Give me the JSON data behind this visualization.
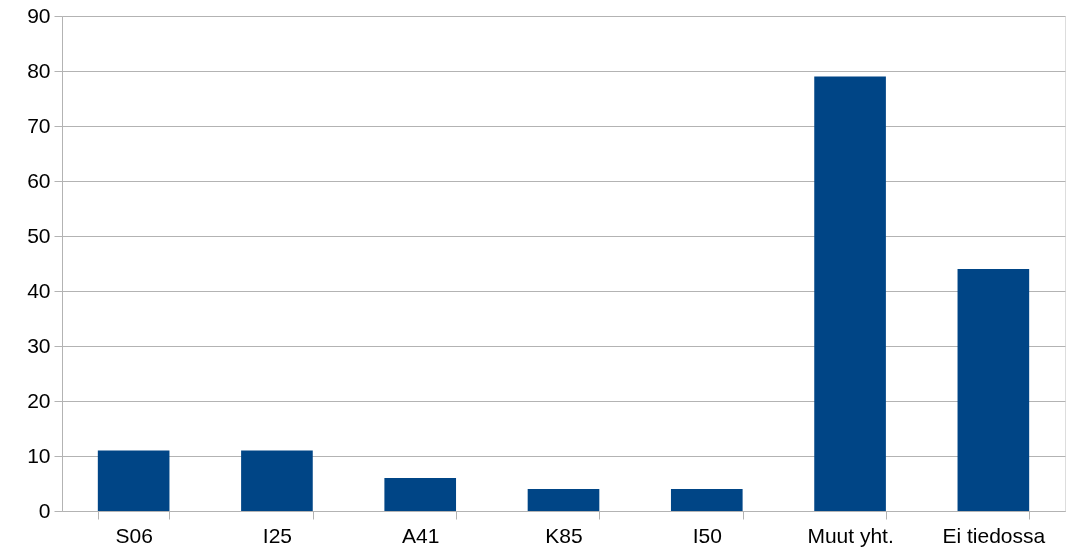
{
  "chart_data": {
    "type": "bar",
    "categories": [
      "S06",
      "I25",
      "A41",
      "K85",
      "I50",
      "Muut yht.",
      "Ei tiedossa"
    ],
    "values": [
      11,
      11,
      6,
      4,
      4,
      79,
      44
    ],
    "color": "#004586",
    "ylim": [
      0,
      90
    ],
    "yticks": [
      0,
      10,
      20,
      30,
      40,
      50,
      60,
      70,
      80,
      90
    ],
    "grid": "y"
  }
}
